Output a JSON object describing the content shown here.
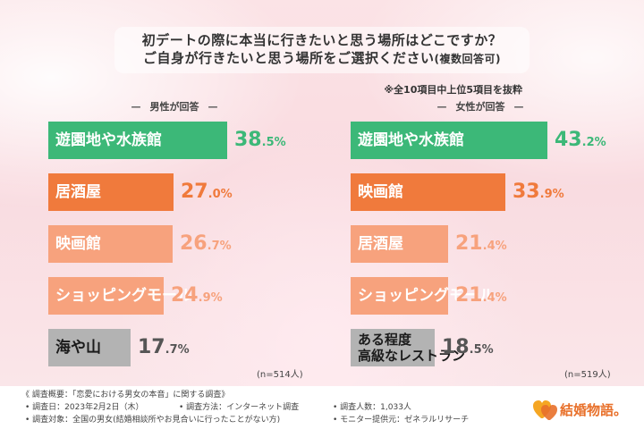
{
  "title_line1": "初デートの際に本当に行きたいと思う場所はどこですか？",
  "title_line2": "ご自身が行きたいと思う場所をご選択ください",
  "title_line2_paren": "(複数回答可)",
  "note": "※全10項目中上位5項目を抜粋",
  "colors": {
    "green": "#3cb878",
    "orange": "#f07a3c",
    "salmon": "#f7a27d",
    "gray": "#b3b3b3"
  },
  "chart_data": [
    {
      "type": "bar",
      "title": "男性が回答",
      "categories": [
        "遊園地や水族館",
        "居酒屋",
        "映画館",
        "ショッピングモール",
        "海や山"
      ],
      "values": [
        38.5,
        27.0,
        26.7,
        24.9,
        17.7
      ],
      "value_labels": [
        [
          "38",
          ".5%"
        ],
        [
          "27",
          ".0%"
        ],
        [
          "26",
          ".7%"
        ],
        [
          "24",
          ".9%"
        ],
        [
          "17",
          ".7%"
        ]
      ],
      "colors": [
        "#3cb878",
        "#f07a3c",
        "#f7a27d",
        "#f7a27d",
        "#b3b3b3"
      ],
      "value_colors": [
        "#3cb878",
        "#f07a3c",
        "#f7a27d",
        "#f7a27d",
        "#555555"
      ],
      "label_dark": [
        false,
        false,
        false,
        false,
        true
      ],
      "n_label": "(n=514人)"
    },
    {
      "type": "bar",
      "title": "女性が回答",
      "categories": [
        "遊園地や水族館",
        "映画館",
        "居酒屋",
        "ショッピングモール",
        "ある程度 高級なレストラン"
      ],
      "values": [
        43.2,
        33.9,
        21.4,
        21.4,
        18.5
      ],
      "value_labels": [
        [
          "43",
          ".2%"
        ],
        [
          "33",
          ".9%"
        ],
        [
          "21",
          ".4%"
        ],
        [
          "21",
          ".4%"
        ],
        [
          "18",
          ".5%"
        ]
      ],
      "colors": [
        "#3cb878",
        "#f07a3c",
        "#f7a27d",
        "#f7a27d",
        "#b3b3b3"
      ],
      "value_colors": [
        "#3cb878",
        "#f07a3c",
        "#f7a27d",
        "#f7a27d",
        "#555555"
      ],
      "label_dark": [
        false,
        false,
        false,
        false,
        true
      ],
      "n_label": "(n=519人)"
    }
  ],
  "survey": {
    "title": "《 調査概要：「恋愛における男女の本音」に関する調査》",
    "date": "• 調査日：2023年2月2日（木）",
    "method": "• 調査方法：インターネット調査",
    "count": "• 調査人数：1,033人",
    "target": "• 調査対象：全国の男女(結婚相談所やお見合いに行ったことがない方)",
    "provider": "• モニター提供元：ゼネラルリサーチ"
  },
  "logo_text": "結婚物語。",
  "logo_icon": "double-heart-icon"
}
